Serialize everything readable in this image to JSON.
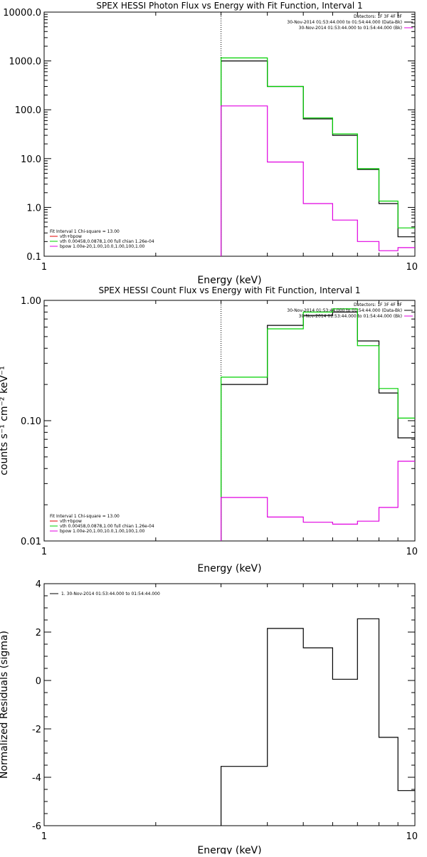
{
  "colors": {
    "data": "#000000",
    "bkg": "#000000",
    "vth": "#00d000",
    "bpow": "#e000e0",
    "total": "#e00000"
  },
  "chart_data": [
    {
      "type": "line",
      "title": "SPEX HESSI Photon Flux vs Energy with Fit Function, Interval 1",
      "xlabel": "Energy (keV)",
      "ylabel": "",
      "xscale": "log",
      "yscale": "log",
      "xlim": [
        1,
        10
      ],
      "ylim": [
        0.1,
        10000
      ],
      "xticks": [
        "1",
        "10"
      ],
      "yticks": [
        "0.1",
        "1.0",
        "10.0",
        "100.0",
        "1000.0",
        "10000.0"
      ],
      "grid": false,
      "fit_line_x": 3,
      "legend_topright": [
        "Detectors: 1F 3F 4F 8F",
        "30-Nov-2014 01:53:44.000 to 01:54:44.000 (Data-Bk)",
        "30-Nov-2014 01:53:44.000 to 01:54:44.000 (Bk)"
      ],
      "legend_bottomleft": [
        "Fit Interval 1    Chi-square = 13.00",
        "vth+bpow",
        "vth 0.00458,0.0878,1.00   full chian 1.26e-04",
        "bpow 1.00e-20,1.00,10.0,1.00,100,1.00"
      ],
      "edges": [
        3,
        4,
        5,
        6,
        7,
        8,
        9,
        10
      ],
      "series": [
        {
          "key": "data",
          "values": [
            1000,
            300,
            65,
            30,
            6,
            1.2,
            0.25
          ]
        },
        {
          "key": "vth",
          "values": [
            1150,
            300,
            68,
            32,
            6.2,
            1.35,
            0.38
          ]
        },
        {
          "key": "bpow",
          "values": [
            120,
            8.5,
            1.2,
            0.55,
            0.2,
            0.13,
            0.15
          ]
        }
      ]
    },
    {
      "type": "line",
      "title": "SPEX HESSI Count Flux vs Energy with Fit Function, Interval 1",
      "xlabel": "Energy (keV)",
      "ylabel": "counts s⁻¹ cm⁻² keV⁻¹",
      "xscale": "log",
      "yscale": "log",
      "xlim": [
        1,
        10
      ],
      "ylim": [
        0.01,
        1.0
      ],
      "xticks": [
        "1",
        "10"
      ],
      "yticks": [
        "0.01",
        "0.10",
        "1.00"
      ],
      "grid": false,
      "fit_line_x": 3,
      "legend_topright": [
        "Detectors: 1F 3F 4F 8F",
        "30-Nov-2014 01:53:44.000 to 01:54:44.000 (Data-Bk)",
        "30-Nov-2014 01:53:44.000 to 01:54:44.000 (Bk)"
      ],
      "legend_bottomleft": [
        "Fit Interval 1    Chi-square = 13.00",
        "vth+bpow",
        "vth 0.00458,0.0878,1.00   full chian 1.26e-04",
        "bpow 1.00e-20,1.00,10.0,1.00,100,1.00"
      ],
      "edges": [
        3,
        4,
        5,
        6,
        7,
        8,
        9,
        10
      ],
      "series": [
        {
          "key": "data",
          "values": [
            0.2,
            0.62,
            0.75,
            0.8,
            0.46,
            0.17,
            0.072
          ]
        },
        {
          "key": "vth",
          "values": [
            0.23,
            0.58,
            0.8,
            0.85,
            0.42,
            0.185,
            0.105
          ]
        },
        {
          "key": "bpow",
          "values": [
            0.023,
            0.0158,
            0.0143,
            0.0138,
            0.0146,
            0.019,
            0.046
          ]
        }
      ]
    },
    {
      "type": "line",
      "title": "",
      "xlabel": "Energy (keV)",
      "ylabel": "Normalized Residuals (sigma)",
      "xscale": "log",
      "yscale": "linear",
      "xlim": [
        1,
        10
      ],
      "ylim": [
        -6,
        4
      ],
      "xticks": [
        "1",
        "10"
      ],
      "yticks": [
        "-6",
        "-4",
        "-2",
        "0",
        "2",
        "4"
      ],
      "grid": false,
      "legend_topleft": [
        "1. 30-Nov-2014 01:53:44.000 to 01:54:44.000"
      ],
      "edges": [
        3,
        4,
        5,
        6,
        7,
        8,
        9,
        10
      ],
      "series": [
        {
          "key": "data",
          "values": [
            -3.55,
            2.15,
            1.35,
            0.05,
            2.55,
            -2.35,
            -4.55
          ]
        }
      ]
    }
  ]
}
